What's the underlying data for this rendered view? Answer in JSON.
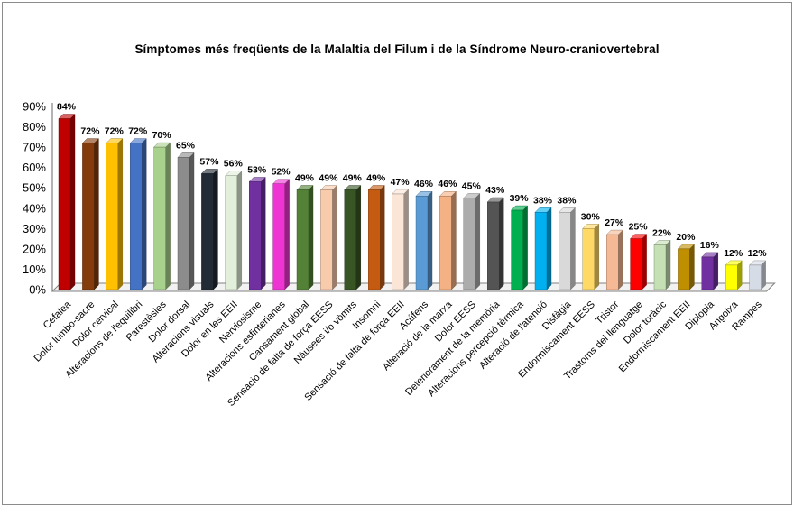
{
  "window": {
    "background": "#FFFFFF",
    "border_color": "#8C8C8C"
  },
  "chart_data": {
    "type": "bar",
    "style": "3d-column",
    "title": "Símptomes més freqüents de la Malaltia del Filum i de la Síndrome Neuro-craniovertebral",
    "xlabel": "",
    "ylabel": "",
    "ylim": [
      0,
      90
    ],
    "grid": false,
    "legend": "none",
    "axis_color": "#808080",
    "floor_fill": "#F2F2F2",
    "ytick_values": [
      0,
      10,
      20,
      30,
      40,
      50,
      60,
      70,
      80,
      90
    ],
    "ytick_labels": [
      "0%",
      "10%",
      "20%",
      "30%",
      "40%",
      "50%",
      "60%",
      "70%",
      "80%",
      "90%"
    ],
    "categories": [
      "Cefalea",
      "Dolor lumbo-sacre",
      "Dolor cervical",
      "Alteracions de l'equilibri",
      "Parestèsies",
      "Dolor dorsal",
      "Alteracions visuals",
      "Dolor en les EEII",
      "Nerviosisme",
      "Alteracions esfinterianes",
      "Cansament global",
      "Sensació de falta de força EESS",
      "Nàusees i/o vòmits",
      "Insomni",
      "Sensació de falta de força EEII",
      "Acúfens",
      "Alteració de la marxa",
      "Dolor EESS",
      "Deteriorament de la memòria",
      "Alteracions percepció tèrmica",
      "Alteració de l'atenció",
      "Disfàgia",
      "Endormiscament EESS",
      "Tristor",
      "Trastorns del llenguatge",
      "Dolor toràcic",
      "Endormiscament  EEII",
      "Diplopia",
      "Angoixa",
      "Rampes"
    ],
    "values": [
      84,
      72,
      72,
      72,
      70,
      65,
      57,
      56,
      53,
      52,
      49,
      49,
      49,
      49,
      47,
      46,
      46,
      45,
      43,
      39,
      38,
      38,
      30,
      27,
      25,
      22,
      20,
      16,
      12,
      12
    ],
    "data_labels": [
      "84%",
      "72%",
      "72%",
      "72%",
      "70%",
      "65%",
      "57%",
      "56%",
      "53%",
      "52%",
      "49%",
      "49%",
      "49%",
      "49%",
      "47%",
      "46%",
      "46%",
      "45%",
      "43%",
      "39%",
      "38%",
      "38%",
      "30%",
      "27%",
      "25%",
      "22%",
      "20%",
      "16%",
      "12%",
      "12%"
    ],
    "colors": [
      "#C00000",
      "#843C0C",
      "#FFC000",
      "#4472C4",
      "#A9D18E",
      "#8C8C8C",
      "#222A35",
      "#E2EFDA",
      "#7030A0",
      "#EE34D2",
      "#538135",
      "#F8CBAD",
      "#375623",
      "#C55A11",
      "#FBE5D6",
      "#5B9BD5",
      "#F4B183",
      "#ACACAC",
      "#545454",
      "#00B050",
      "#00B0F0",
      "#D9D9D9",
      "#FFD966",
      "#F6B995",
      "#FF0000",
      "#C5E0B4",
      "#BF8F00",
      "#7030A0",
      "#FFFF00",
      "#D6DCE5"
    ]
  }
}
